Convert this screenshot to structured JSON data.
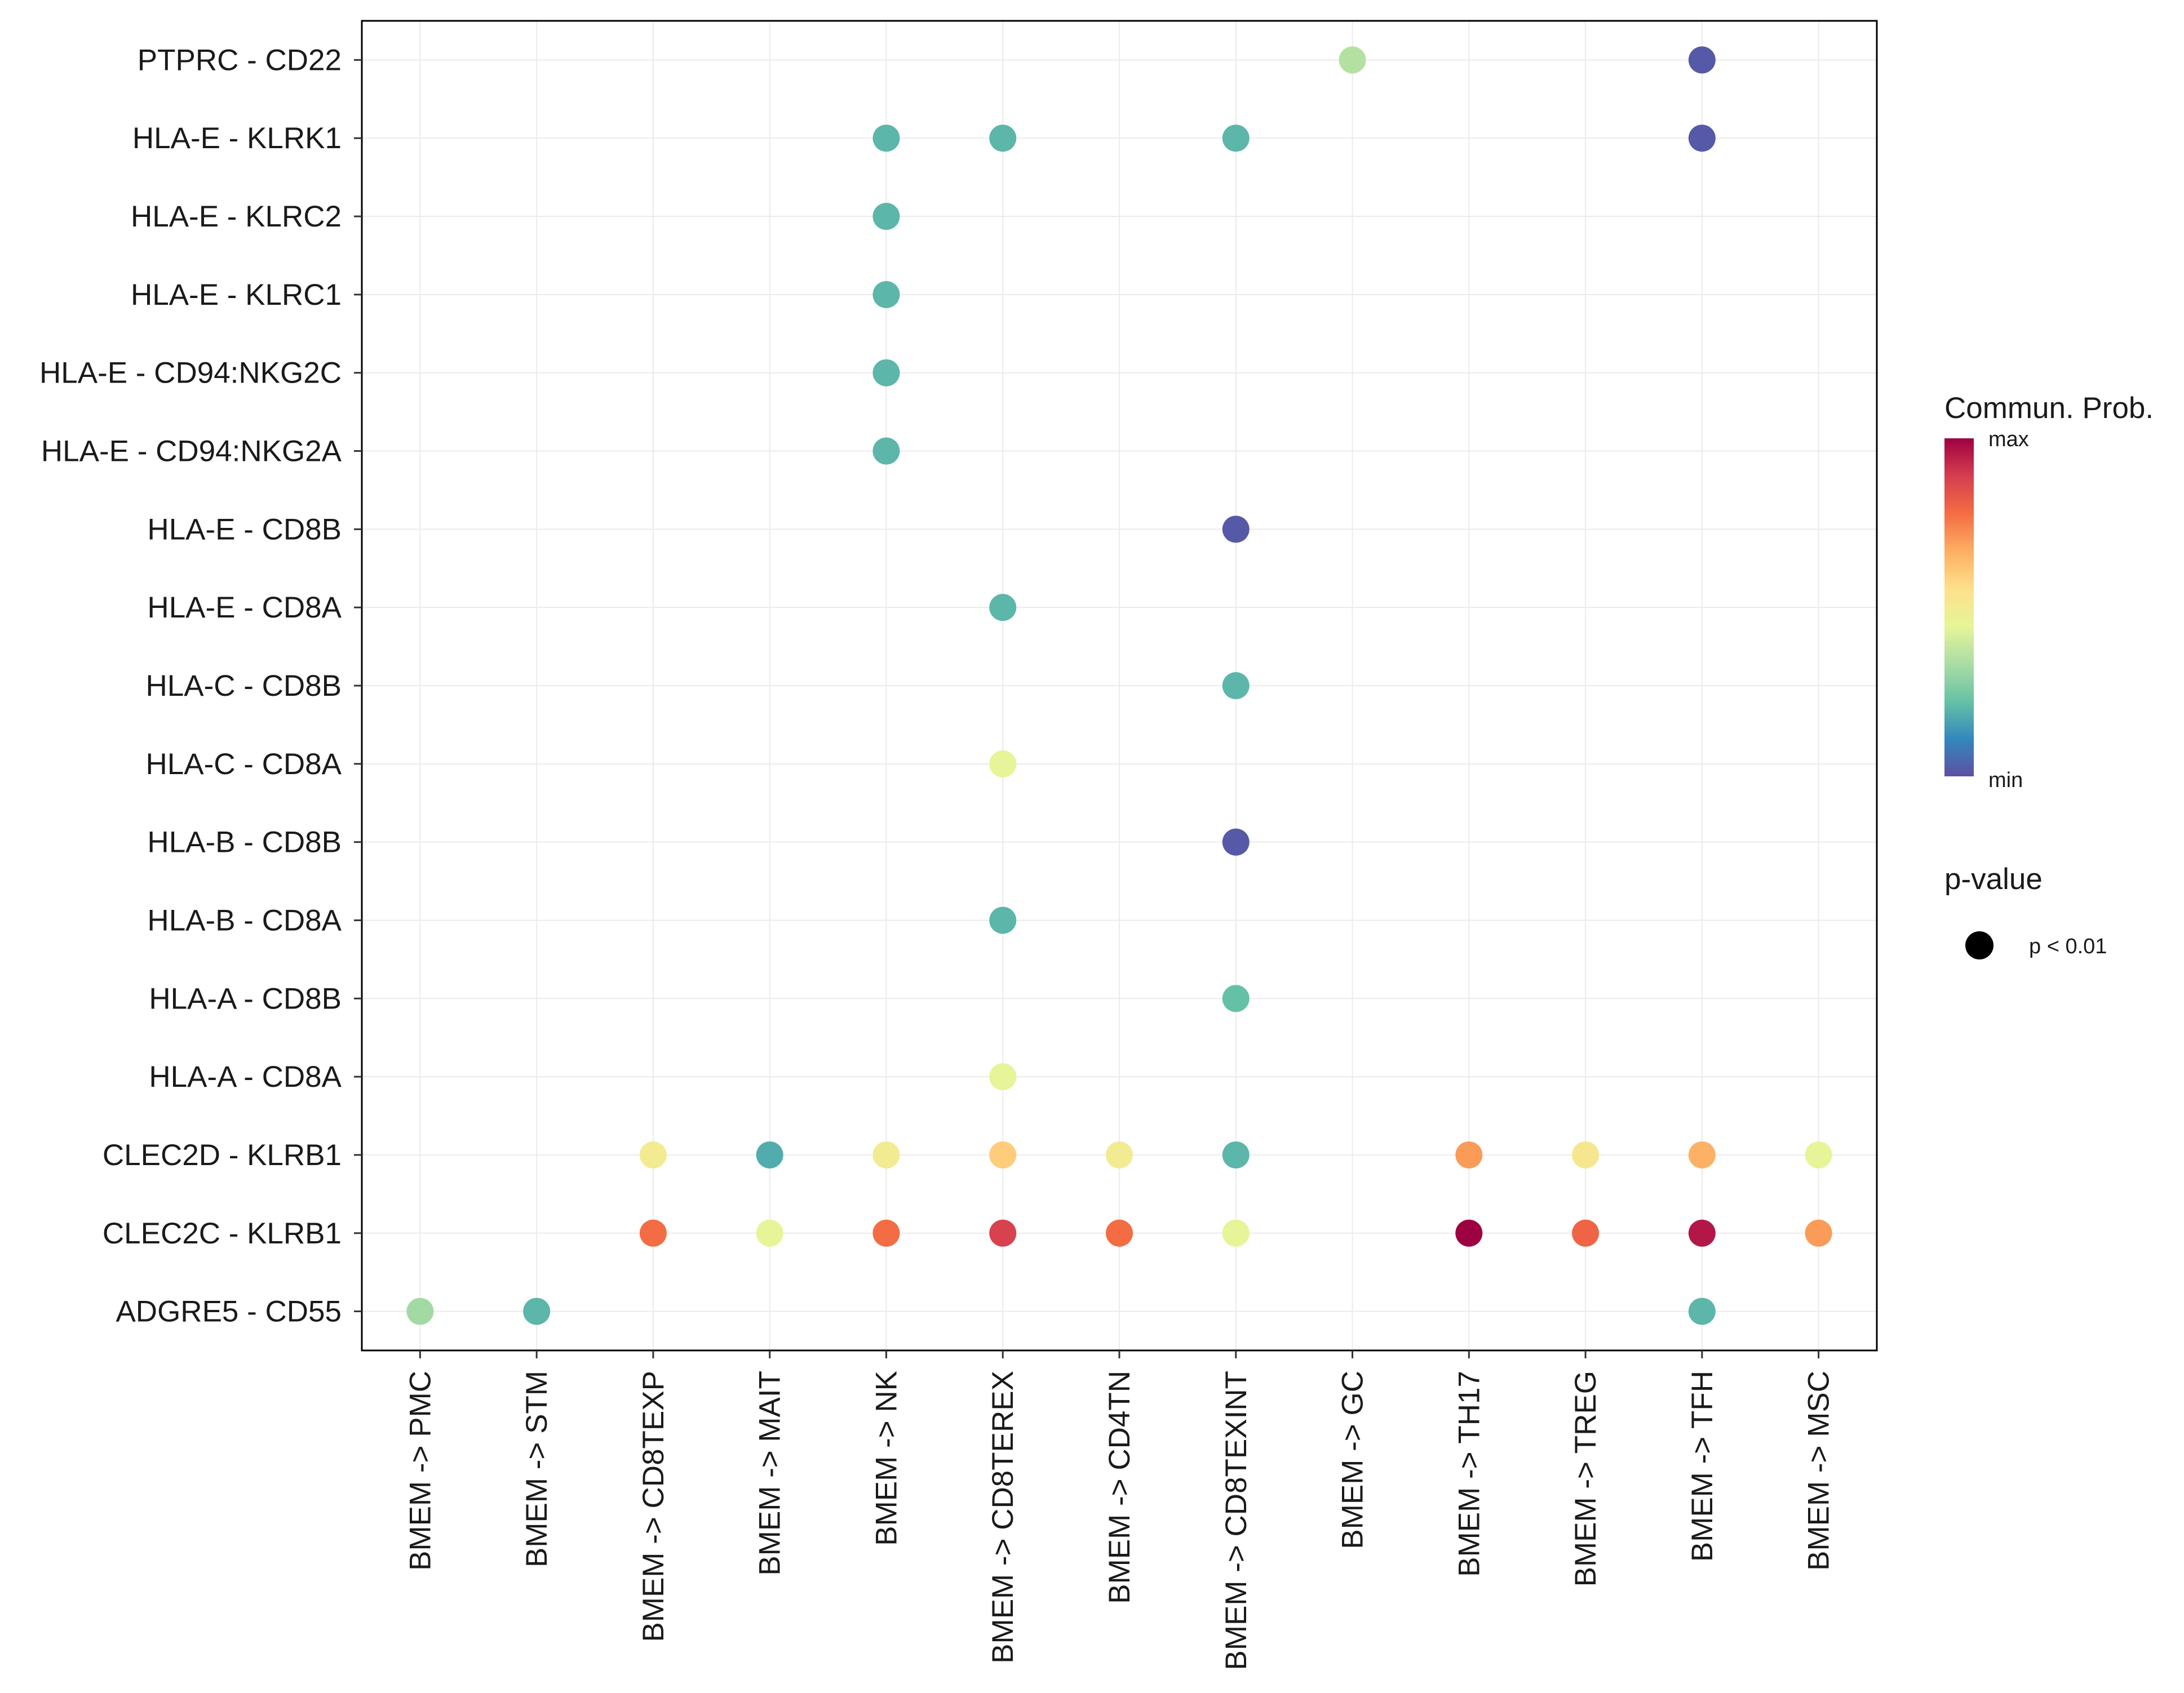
{
  "chart_data": {
    "type": "scatter",
    "subtype": "dot-plot",
    "x_categories": [
      "BMEM -> PMC",
      "BMEM -> STM",
      "BMEM -> CD8TEXP",
      "BMEM -> MAIT",
      "BMEM -> NK",
      "BMEM -> CD8TEREX",
      "BMEM -> CD4TN",
      "BMEM -> CD8TEXINT",
      "BMEM -> GC",
      "BMEM -> TH17",
      "BMEM -> TREG",
      "BMEM -> TFH",
      "BMEM -> MSC"
    ],
    "y_categories": [
      "PTPRC - CD22",
      "HLA-E - KLRK1",
      "HLA-E - KLRC2",
      "HLA-E - KLRC1",
      "HLA-E - CD94:NKG2C",
      "HLA-E - CD94:NKG2A",
      "HLA-E - CD8B",
      "HLA-E - CD8A",
      "HLA-C - CD8B",
      "HLA-C - CD8A",
      "HLA-B - CD8B",
      "HLA-B - CD8A",
      "HLA-A - CD8B",
      "HLA-A - CD8A",
      "CLEC2D - KLRB1",
      "CLEC2C - KLRB1",
      "ADGRE5 - CD55"
    ],
    "points": [
      {
        "x": "BMEM -> GC",
        "y": "PTPRC - CD22",
        "prob": 0.35
      },
      {
        "x": "BMEM -> TFH",
        "y": "PTPRC - CD22",
        "prob": 0.02
      },
      {
        "x": "BMEM -> NK",
        "y": "HLA-E - KLRK1",
        "prob": 0.2
      },
      {
        "x": "BMEM -> CD8TEREX",
        "y": "HLA-E - KLRK1",
        "prob": 0.2
      },
      {
        "x": "BMEM -> CD8TEXINT",
        "y": "HLA-E - KLRK1",
        "prob": 0.2
      },
      {
        "x": "BMEM -> TFH",
        "y": "HLA-E - KLRK1",
        "prob": 0.02
      },
      {
        "x": "BMEM -> NK",
        "y": "HLA-E - KLRC2",
        "prob": 0.2
      },
      {
        "x": "BMEM -> NK",
        "y": "HLA-E - KLRC1",
        "prob": 0.2
      },
      {
        "x": "BMEM -> NK",
        "y": "HLA-E - CD94:NKG2C",
        "prob": 0.2
      },
      {
        "x": "BMEM -> NK",
        "y": "HLA-E - CD94:NKG2A",
        "prob": 0.2
      },
      {
        "x": "BMEM -> CD8TEXINT",
        "y": "HLA-E - CD8B",
        "prob": 0.02
      },
      {
        "x": "BMEM -> CD8TEREX",
        "y": "HLA-E - CD8A",
        "prob": 0.2
      },
      {
        "x": "BMEM -> CD8TEXINT",
        "y": "HLA-C - CD8B",
        "prob": 0.2
      },
      {
        "x": "BMEM -> CD8TEREX",
        "y": "HLA-C - CD8A",
        "prob": 0.45
      },
      {
        "x": "BMEM -> CD8TEXINT",
        "y": "HLA-B - CD8B",
        "prob": 0.02
      },
      {
        "x": "BMEM -> CD8TEREX",
        "y": "HLA-B - CD8A",
        "prob": 0.2
      },
      {
        "x": "BMEM -> CD8TEXINT",
        "y": "HLA-A - CD8B",
        "prob": 0.22
      },
      {
        "x": "BMEM -> CD8TEREX",
        "y": "HLA-A - CD8A",
        "prob": 0.45
      },
      {
        "x": "BMEM -> CD8TEXP",
        "y": "CLEC2D - KLRB1",
        "prob": 0.5
      },
      {
        "x": "BMEM -> MAIT",
        "y": "CLEC2D - KLRB1",
        "prob": 0.18
      },
      {
        "x": "BMEM -> NK",
        "y": "CLEC2D - KLRB1",
        "prob": 0.5
      },
      {
        "x": "BMEM -> CD8TEREX",
        "y": "CLEC2D - KLRB1",
        "prob": 0.6
      },
      {
        "x": "BMEM -> CD4TN",
        "y": "CLEC2D - KLRB1",
        "prob": 0.5
      },
      {
        "x": "BMEM -> CD8TEXINT",
        "y": "CLEC2D - KLRB1",
        "prob": 0.2
      },
      {
        "x": "BMEM -> TH17",
        "y": "CLEC2D - KLRB1",
        "prob": 0.7
      },
      {
        "x": "BMEM -> TREG",
        "y": "CLEC2D - KLRB1",
        "prob": 0.52
      },
      {
        "x": "BMEM -> TFH",
        "y": "CLEC2D - KLRB1",
        "prob": 0.66
      },
      {
        "x": "BMEM -> MSC",
        "y": "CLEC2D - KLRB1",
        "prob": 0.45
      },
      {
        "x": "BMEM -> CD8TEXP",
        "y": "CLEC2C - KLRB1",
        "prob": 0.78
      },
      {
        "x": "BMEM -> MAIT",
        "y": "CLEC2C - KLRB1",
        "prob": 0.45
      },
      {
        "x": "BMEM -> NK",
        "y": "CLEC2C - KLRB1",
        "prob": 0.78
      },
      {
        "x": "BMEM -> CD8TEREX",
        "y": "CLEC2C - KLRB1",
        "prob": 0.88
      },
      {
        "x": "BMEM -> CD4TN",
        "y": "CLEC2C - KLRB1",
        "prob": 0.78
      },
      {
        "x": "BMEM -> CD8TEXINT",
        "y": "CLEC2C - KLRB1",
        "prob": 0.45
      },
      {
        "x": "BMEM -> TH17",
        "y": "CLEC2C - KLRB1",
        "prob": 1.0
      },
      {
        "x": "BMEM -> TREG",
        "y": "CLEC2C - KLRB1",
        "prob": 0.8
      },
      {
        "x": "BMEM -> TFH",
        "y": "CLEC2C - KLRB1",
        "prob": 0.96
      },
      {
        "x": "BMEM -> MSC",
        "y": "CLEC2C - KLRB1",
        "prob": 0.7
      },
      {
        "x": "BMEM -> PMC",
        "y": "ADGRE5 - CD55",
        "prob": 0.32
      },
      {
        "x": "BMEM -> STM",
        "y": "ADGRE5 - CD55",
        "prob": 0.2
      },
      {
        "x": "BMEM -> TFH",
        "y": "ADGRE5 - CD55",
        "prob": 0.2
      }
    ],
    "color_scale": {
      "name": "Spectral",
      "stops": [
        "#5E4FA2",
        "#3288BD",
        "#66C2A5",
        "#ABDDA4",
        "#E6F598",
        "#FEE08B",
        "#FDAE61",
        "#F46D43",
        "#D53E4F",
        "#9E0142"
      ]
    },
    "legend_color": {
      "title": "Commun. Prob.",
      "max_label": "max",
      "min_label": "min"
    },
    "legend_size": {
      "title": "p-value",
      "entries": [
        "p < 0.01"
      ]
    }
  }
}
